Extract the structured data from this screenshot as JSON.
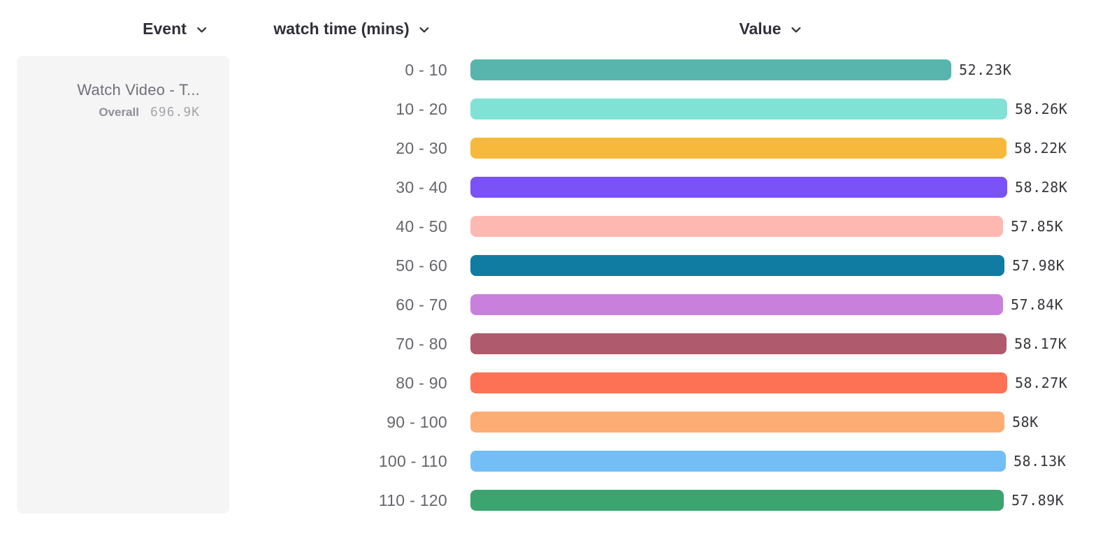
{
  "header": {
    "event_label": "Event",
    "breakdown_label": "watch time (mins)",
    "value_label": "Value"
  },
  "event_card": {
    "name": "Watch Video - T...",
    "overall_label": "Overall",
    "overall_value": "696.9K"
  },
  "chart_data": {
    "type": "bar",
    "orientation": "horizontal",
    "title": "",
    "xlabel": "Value",
    "ylabel": "watch time (mins)",
    "xlim": [
      0,
      58280
    ],
    "grid": false,
    "legend": false,
    "categories": [
      "0 - 10",
      "10 - 20",
      "20 - 30",
      "30 - 40",
      "40 - 50",
      "50 - 60",
      "60 - 70",
      "70 - 80",
      "80 - 90",
      "90 - 100",
      "100 - 110",
      "110 - 120"
    ],
    "values": [
      52230,
      58260,
      58220,
      58280,
      57850,
      57980,
      57840,
      58170,
      58270,
      58000,
      58130,
      57890
    ],
    "value_labels": [
      "52.23K",
      "58.26K",
      "58.22K",
      "58.28K",
      "57.85K",
      "57.98K",
      "57.84K",
      "58.17K",
      "58.27K",
      "58K",
      "58.13K",
      "57.89K"
    ],
    "bar_colors": [
      "#58B5AD",
      "#7FE2D4",
      "#F6B93C",
      "#7A52F5",
      "#FDB9B1",
      "#107CA2",
      "#C980DC",
      "#AF5A6D",
      "#FD7154",
      "#FCAD74",
      "#73BEF4",
      "#3BA46F"
    ]
  }
}
